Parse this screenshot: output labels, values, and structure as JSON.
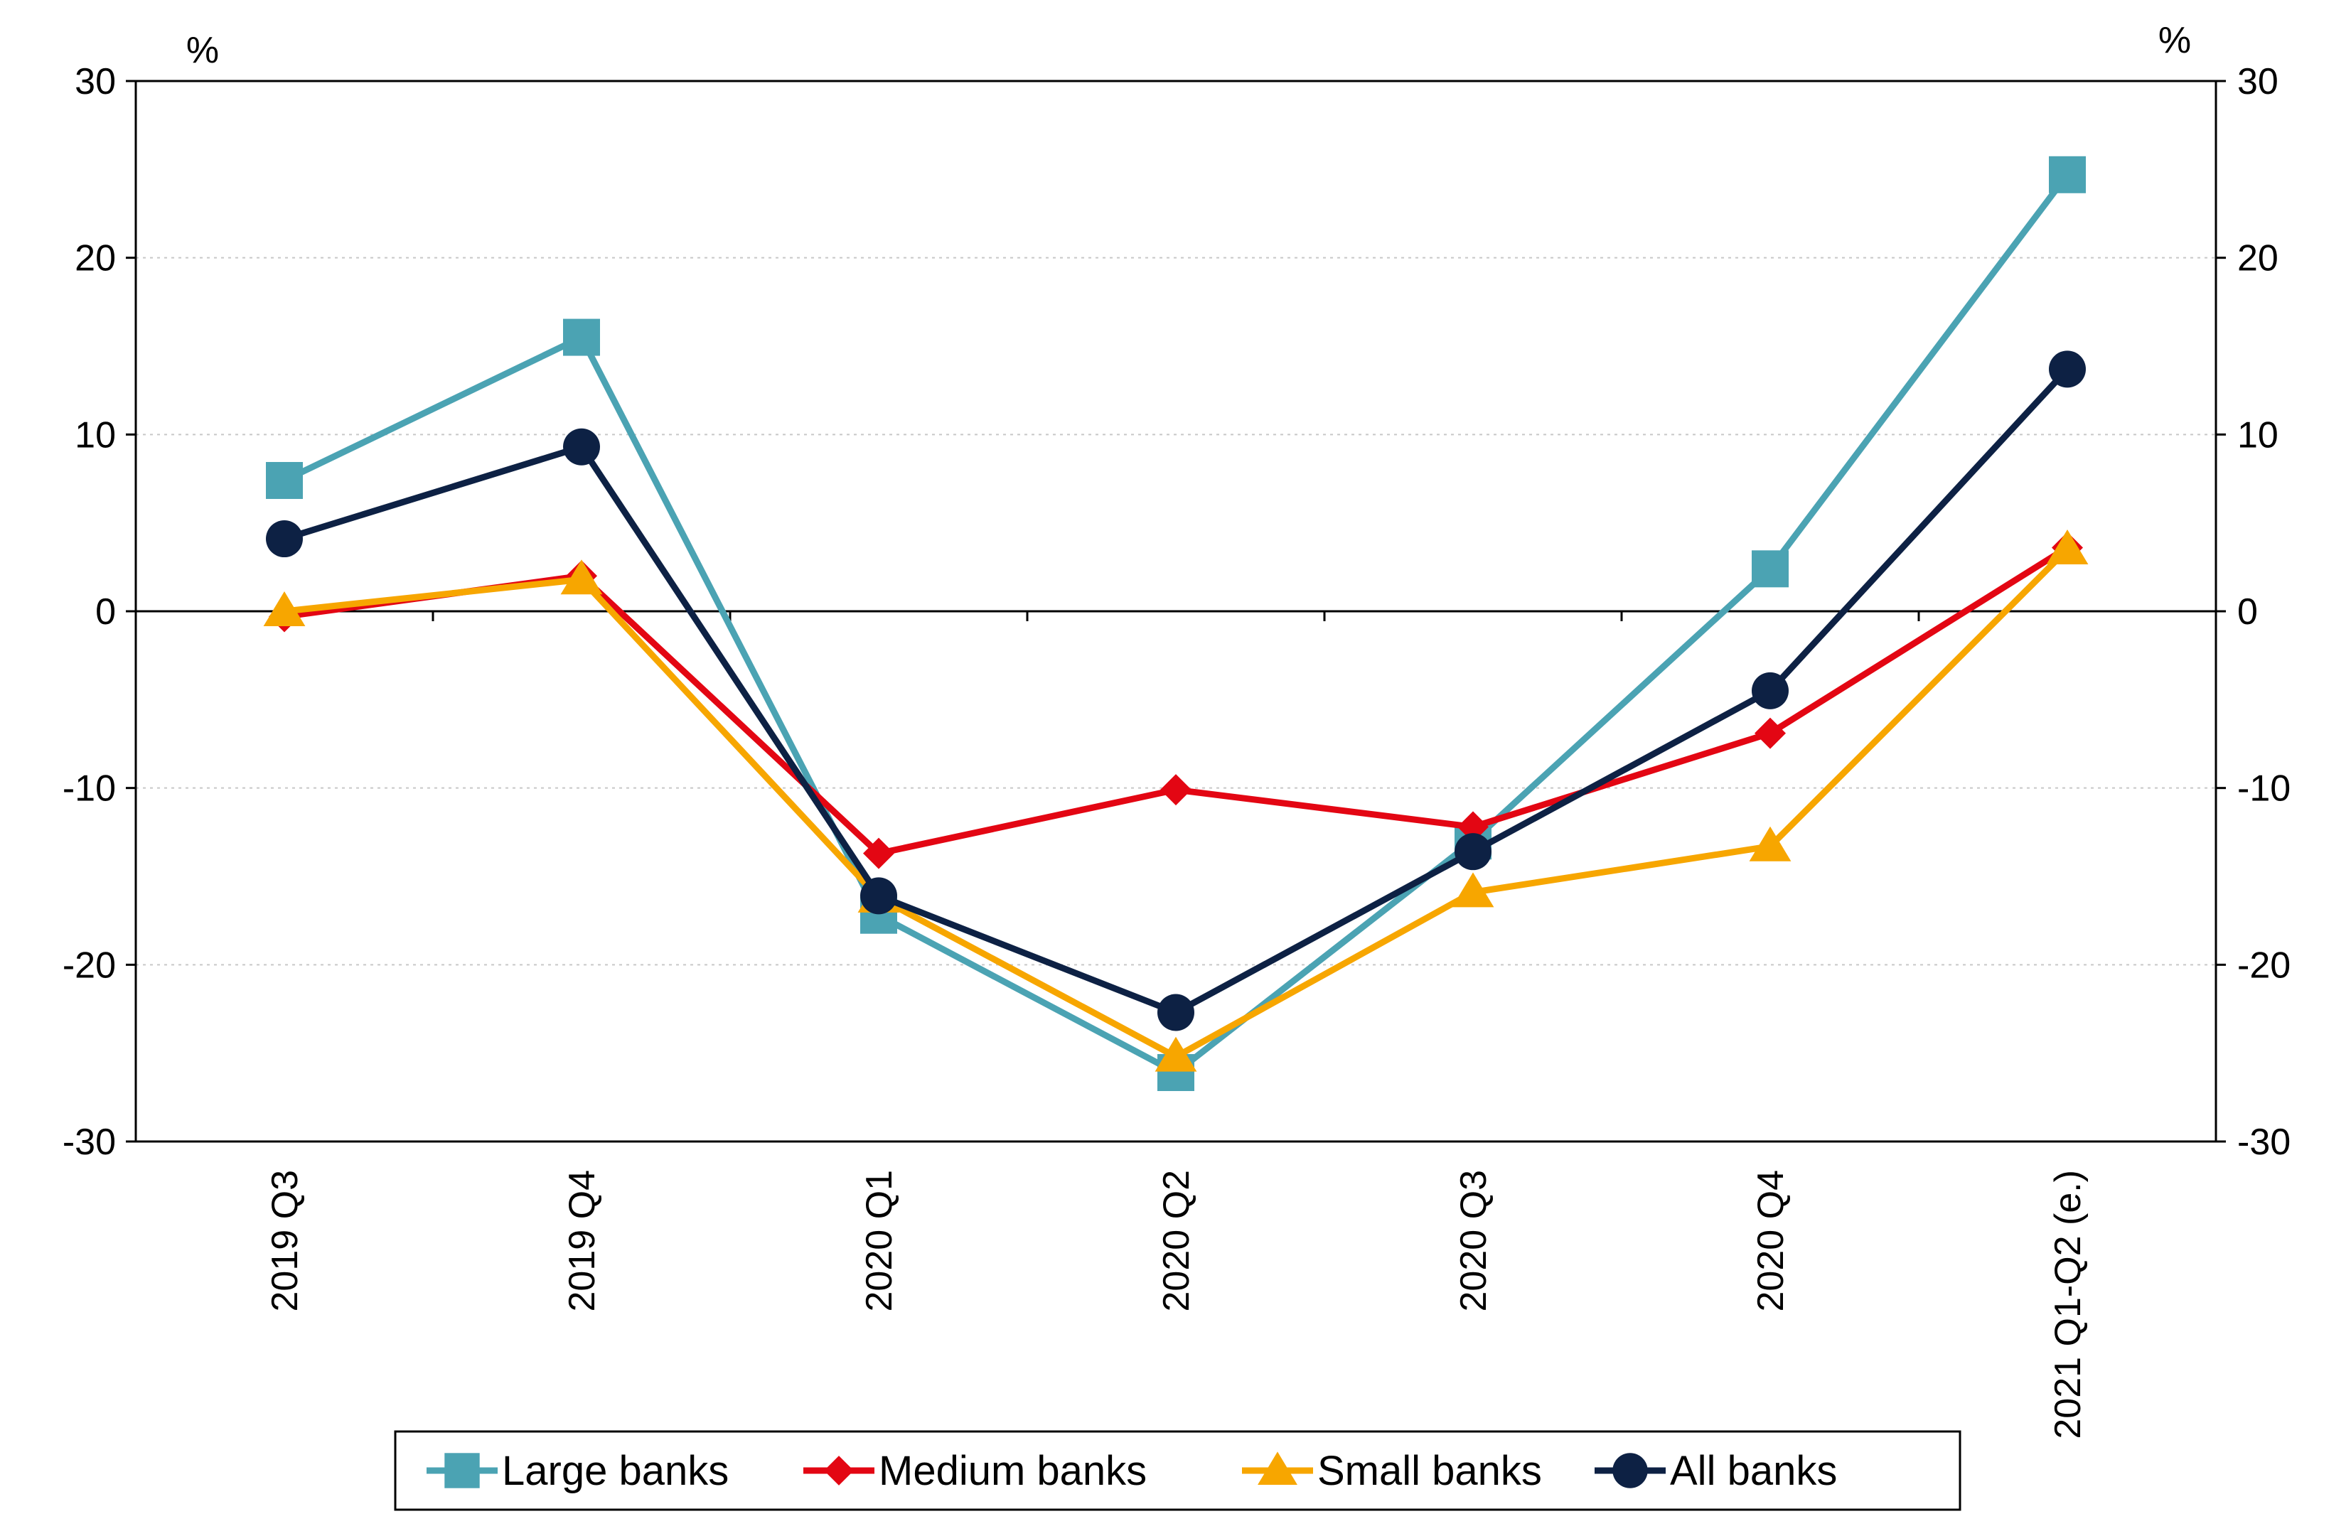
{
  "chart_data": {
    "type": "line",
    "title": "",
    "xlabel": "",
    "ylabel": "",
    "y_unit_left": "%",
    "y_unit_right": "%",
    "ylim": [
      -30,
      30
    ],
    "yticks": [
      -30,
      -20,
      -10,
      0,
      10,
      20,
      30
    ],
    "ytick_labels": [
      "-30",
      "-20",
      "-10",
      "0",
      "10",
      "20",
      "30"
    ],
    "grid": "horizontal dotted",
    "legend_position": "bottom",
    "categories": [
      "2019 Q3",
      "2019 Q4",
      "2020 Q1",
      "2020 Q2",
      "2020 Q3",
      "2020 Q4",
      "2021 Q1-Q2 (e.)"
    ],
    "series": [
      {
        "name": "Large banks",
        "color": "#4BA3B3",
        "marker": "square",
        "values": [
          7.4,
          15.5,
          -17.2,
          -26.1,
          -13.0,
          2.4,
          24.7
        ]
      },
      {
        "name": "Medium banks",
        "color": "#E30613",
        "marker": "diamond",
        "values": [
          -0.3,
          2.0,
          -13.7,
          -10.1,
          -12.2,
          -6.9,
          3.6
        ]
      },
      {
        "name": "Small banks",
        "color": "#F7A600",
        "marker": "triangle",
        "values": [
          0.0,
          1.8,
          -16.2,
          -25.2,
          -15.9,
          -13.3,
          3.5
        ]
      },
      {
        "name": "All banks",
        "color": "#0D2144",
        "marker": "circle",
        "values": [
          4.1,
          9.3,
          -16.1,
          -22.7,
          -13.6,
          -4.5,
          13.7
        ]
      }
    ]
  }
}
